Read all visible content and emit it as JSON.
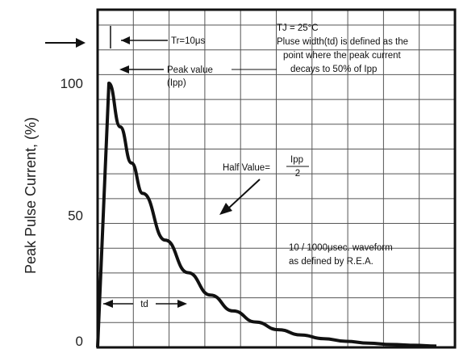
{
  "chart_data": {
    "type": "line",
    "title": "",
    "xlabel": "",
    "ylabel": "Peak Pulse Current, (%)",
    "ylim": [
      0,
      120
    ],
    "y_ticks": [
      "100",
      "50",
      "0"
    ],
    "y_tick_values": [
      100,
      50,
      0
    ],
    "grid": true,
    "series": [
      {
        "x": [
          0,
          10,
          20,
          30,
          40,
          60,
          80,
          100,
          120,
          140,
          160,
          180,
          200,
          220,
          240,
          260,
          280,
          300
        ],
        "values": [
          0,
          100,
          83.5,
          69.8,
          58.3,
          40.6,
          28.3,
          19.8,
          13.8,
          9.6,
          6.7,
          4.7,
          3.3,
          2.3,
          1.6,
          1.1,
          0.8,
          0.5
        ]
      }
    ],
    "annotations": {
      "tr": "Tr=10μs",
      "tj": "TJ = 25°C",
      "pulse_width_lines": [
        "Pluse width(td) is defined as the",
        "point where the peak current",
        "decays to 50% of Ipp"
      ],
      "peak_line1": "Peak value",
      "peak_line2": "(Ipp)",
      "half_value": "Half Value=",
      "half_num": "Ipp",
      "half_den": "2",
      "waveform_line1": "10 / 1000μsec. waveform",
      "waveform_line2": "as defined by R.E.A.",
      "td": "td"
    }
  }
}
